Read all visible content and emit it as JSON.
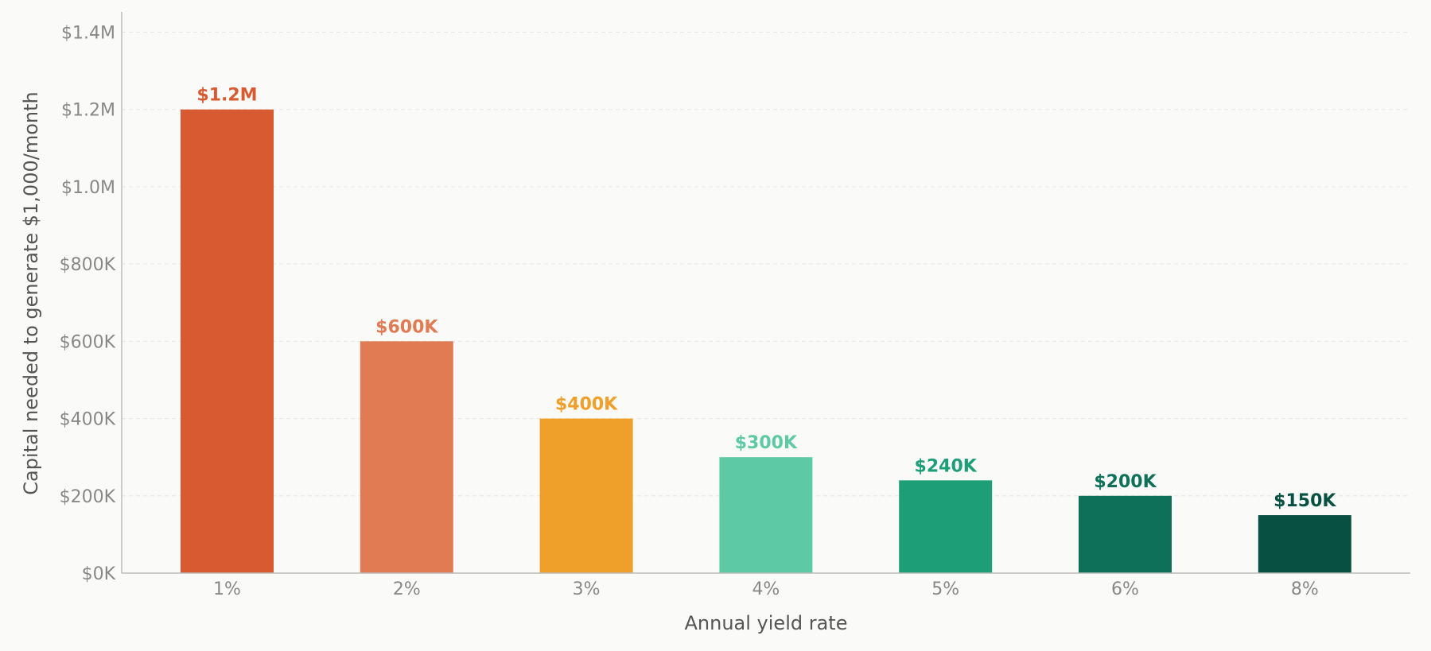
{
  "chart_data": {
    "type": "bar",
    "title": "",
    "xlabel": "Annual yield rate",
    "ylabel": "Capital needed to generate $1,000/month",
    "categories": [
      "1%",
      "2%",
      "3%",
      "4%",
      "5%",
      "6%",
      "8%"
    ],
    "values": [
      1200000,
      600000,
      400000,
      300000,
      240000,
      200000,
      150000
    ],
    "value_labels": [
      "$1.2M",
      "$600K",
      "$400K",
      "$300K",
      "$240K",
      "$200K",
      "$150K"
    ],
    "colors": [
      "#d85a30",
      "#e07b53",
      "#efa02a",
      "#5ecaa5",
      "#1e9e76",
      "#0f705a",
      "#085041"
    ],
    "ylim": [
      0,
      1450000
    ],
    "yticks": [
      0,
      200000,
      400000,
      600000,
      800000,
      1000000,
      1200000,
      1400000
    ],
    "ytick_labels": [
      "$0K",
      "$200K",
      "$400K",
      "$600K",
      "$800K",
      "$1.0M",
      "$1.2M",
      "$1.4M"
    ],
    "grid": true,
    "legend": "none"
  }
}
